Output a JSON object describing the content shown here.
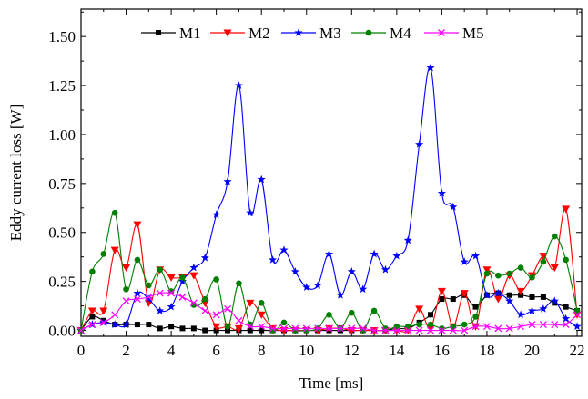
{
  "chart_data": {
    "type": "line",
    "title": "",
    "xlabel": "Time [ms]",
    "ylabel": "Eddy current loss [W]",
    "xlim": [
      0,
      22.2
    ],
    "ylim": [
      -0.03,
      1.64
    ],
    "x_ticks": [
      0,
      2,
      4,
      6,
      8,
      10,
      12,
      14,
      16,
      18,
      20,
      22
    ],
    "x_tick_labels": [
      "0",
      "2",
      "4",
      "6",
      "8",
      "10",
      "12",
      "14",
      "16",
      "18",
      "20",
      "22"
    ],
    "y_ticks": [
      0.0,
      0.25,
      0.5,
      0.75,
      1.0,
      1.25,
      1.5
    ],
    "y_tick_labels": [
      "0.00",
      "0.25",
      "0.50",
      "0.75",
      "1.00",
      "1.25",
      "1.50"
    ],
    "grid": false,
    "legend_position": "top",
    "x": [
      0,
      0.5,
      1,
      1.5,
      2,
      2.5,
      3,
      3.5,
      4,
      4.5,
      5,
      5.5,
      6,
      6.5,
      7,
      7.5,
      8,
      8.5,
      9,
      9.5,
      10,
      10.5,
      11,
      11.5,
      12,
      12.5,
      13,
      13.5,
      14,
      14.5,
      15,
      15.5,
      16,
      16.5,
      17,
      17.5,
      18,
      18.5,
      19,
      19.5,
      20,
      20.5,
      21,
      21.5,
      22
    ],
    "series": [
      {
        "name": "M1",
        "color": "#000000",
        "marker": "square",
        "values": [
          0.0,
          0.07,
          0.05,
          0.03,
          0.03,
          0.03,
          0.03,
          0.01,
          0.02,
          0.01,
          0.01,
          0.0,
          0.0,
          0.0,
          0.0,
          0.0,
          0.0,
          0.0,
          0.0,
          0.0,
          0.0,
          0.0,
          0.0,
          0.0,
          0.0,
          0.0,
          0.0,
          0.0,
          0.01,
          0.01,
          0.04,
          0.08,
          0.16,
          0.16,
          0.18,
          0.12,
          0.18,
          0.19,
          0.18,
          0.18,
          0.17,
          0.17,
          0.14,
          0.12,
          0.1
        ]
      },
      {
        "name": "M2",
        "color": "#ff0000",
        "marker": "triangle-down",
        "values": [
          0.0,
          0.1,
          0.1,
          0.41,
          0.32,
          0.54,
          0.14,
          0.31,
          0.27,
          0.27,
          0.28,
          0.14,
          0.02,
          0.02,
          0.01,
          0.14,
          0.08,
          0.01,
          0.0,
          0.0,
          0.0,
          0.0,
          0.01,
          0.01,
          0.0,
          0.0,
          0.0,
          0.0,
          0.0,
          0.0,
          0.11,
          0.01,
          0.2,
          0.02,
          0.19,
          0.02,
          0.31,
          0.16,
          0.28,
          0.2,
          0.28,
          0.38,
          0.32,
          0.62,
          0.08
        ]
      },
      {
        "name": "M3",
        "color": "#0000ff",
        "marker": "star",
        "values": [
          0.0,
          0.03,
          0.04,
          0.03,
          0.03,
          0.19,
          0.16,
          0.1,
          0.12,
          0.25,
          0.32,
          0.37,
          0.59,
          0.76,
          1.25,
          0.6,
          0.77,
          0.36,
          0.41,
          0.3,
          0.22,
          0.23,
          0.39,
          0.18,
          0.3,
          0.21,
          0.39,
          0.31,
          0.38,
          0.46,
          0.95,
          1.34,
          0.7,
          0.63,
          0.35,
          0.38,
          0.18,
          0.19,
          0.15,
          0.08,
          0.1,
          0.11,
          0.15,
          0.06,
          0.02
        ]
      },
      {
        "name": "M4",
        "color": "#008000",
        "marker": "circle",
        "values": [
          0.0,
          0.3,
          0.39,
          0.6,
          0.21,
          0.36,
          0.23,
          0.31,
          0.2,
          0.27,
          0.13,
          0.16,
          0.26,
          0.02,
          0.24,
          0.03,
          0.14,
          0.0,
          0.04,
          0.0,
          0.0,
          0.01,
          0.08,
          0.01,
          0.09,
          0.0,
          0.1,
          0.01,
          0.02,
          0.02,
          0.03,
          0.03,
          0.01,
          0.02,
          0.03,
          0.07,
          0.29,
          0.28,
          0.29,
          0.32,
          0.27,
          0.35,
          0.48,
          0.36,
          0.1
        ]
      },
      {
        "name": "M5",
        "color": "#ff00ff",
        "marker": "x",
        "values": [
          0.0,
          0.03,
          0.04,
          0.08,
          0.15,
          0.16,
          0.17,
          0.19,
          0.19,
          0.17,
          0.14,
          0.1,
          0.08,
          0.11,
          0.05,
          0.02,
          0.02,
          0.01,
          0.01,
          0.01,
          0.01,
          0.01,
          0.01,
          0.01,
          0.01,
          0.01,
          0.0,
          0.0,
          0.0,
          0.0,
          0.0,
          0.0,
          0.0,
          0.0,
          0.0,
          0.02,
          0.02,
          0.01,
          0.01,
          0.02,
          0.03,
          0.03,
          0.03,
          0.03,
          0.08
        ]
      }
    ]
  }
}
